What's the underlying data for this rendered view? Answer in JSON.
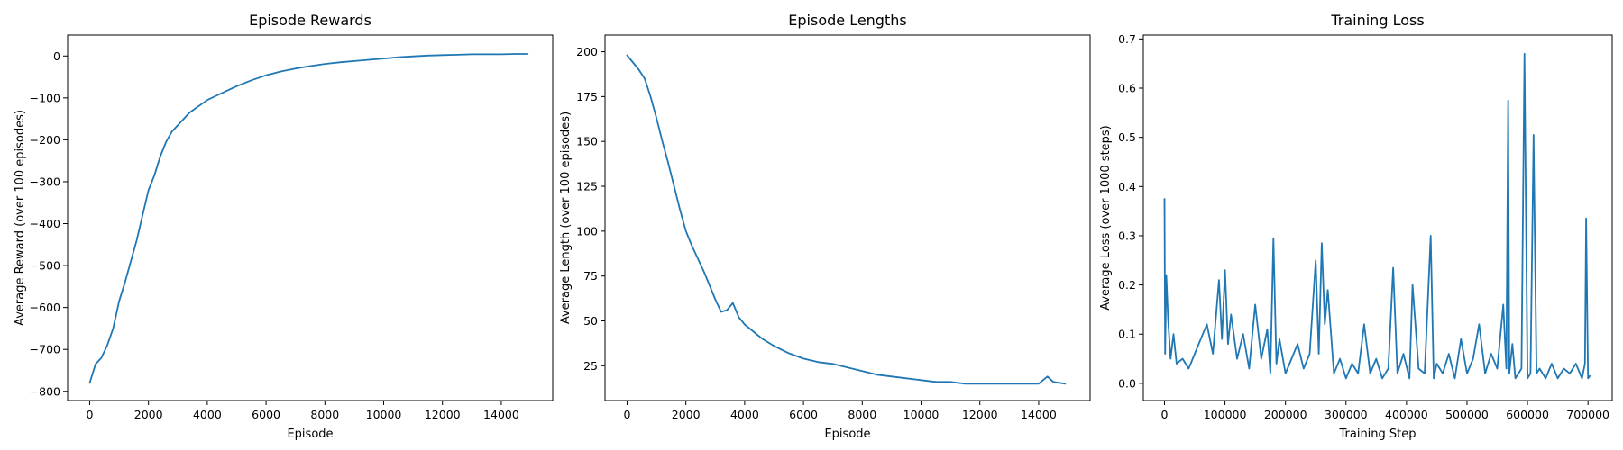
{
  "colors": {
    "series": "#1f77b4",
    "axes": "#000000",
    "background": "#ffffff"
  },
  "chart_data": [
    {
      "type": "line",
      "title": "Episode Rewards",
      "xlabel": "Episode",
      "ylabel": "Average Reward (over 100 episodes)",
      "xlim": [
        -750,
        15750
      ],
      "ylim": [
        -822,
        50
      ],
      "xticks": [
        0,
        2000,
        4000,
        6000,
        8000,
        10000,
        12000,
        14000
      ],
      "yticks": [
        -800,
        -700,
        -600,
        -500,
        -400,
        -300,
        -200,
        -100,
        0
      ],
      "grid": false,
      "series": [
        {
          "x": [
            0,
            200,
            400,
            600,
            800,
            1000,
            1200,
            1400,
            1600,
            1800,
            2000,
            2200,
            2400,
            2600,
            2800,
            3000,
            3200,
            3400,
            3600,
            3800,
            4000,
            4300,
            4600,
            5000,
            5500,
            6000,
            6500,
            7000,
            7500,
            8000,
            8500,
            9000,
            9500,
            10000,
            10500,
            11000,
            11500,
            12000,
            12500,
            13000,
            13500,
            14000,
            14500,
            14900
          ],
          "y": [
            -780,
            -735,
            -720,
            -690,
            -650,
            -585,
            -540,
            -490,
            -440,
            -380,
            -320,
            -285,
            -240,
            -205,
            -180,
            -165,
            -150,
            -135,
            -125,
            -115,
            -105,
            -95,
            -85,
            -72,
            -58,
            -46,
            -37,
            -30,
            -24,
            -19,
            -15,
            -12,
            -9,
            -6,
            -3,
            -1,
            1,
            2,
            3,
            4,
            4,
            4,
            5,
            5
          ]
        }
      ]
    },
    {
      "type": "line",
      "title": "Episode Lengths",
      "xlabel": "Episode",
      "ylabel": "Average Length (over 100 episodes)",
      "xlim": [
        -750,
        15750
      ],
      "ylim": [
        5.6,
        209.3
      ],
      "xticks": [
        0,
        2000,
        4000,
        6000,
        8000,
        10000,
        12000,
        14000
      ],
      "yticks": [
        25,
        50,
        75,
        100,
        125,
        150,
        175,
        200
      ],
      "grid": false,
      "series": [
        {
          "x": [
            0,
            200,
            400,
            600,
            800,
            1000,
            1200,
            1400,
            1600,
            1800,
            2000,
            2200,
            2400,
            2600,
            2800,
            3000,
            3200,
            3400,
            3600,
            3800,
            4000,
            4300,
            4600,
            5000,
            5500,
            6000,
            6500,
            7000,
            7500,
            8000,
            8500,
            9000,
            9500,
            10000,
            10500,
            11000,
            11500,
            12000,
            12500,
            13000,
            13500,
            14000,
            14300,
            14500,
            14900
          ],
          "y": [
            198,
            194,
            190,
            185,
            175,
            163,
            150,
            138,
            125,
            112,
            100,
            92,
            85,
            78,
            70,
            62,
            55,
            56,
            60,
            52,
            48,
            44,
            40,
            36,
            32,
            29,
            27,
            26,
            24,
            22,
            20,
            19,
            18,
            17,
            16,
            16,
            15,
            15,
            15,
            15,
            15,
            15,
            19,
            16,
            15
          ]
        }
      ]
    },
    {
      "type": "line",
      "title": "Training Loss",
      "xlabel": "Training Step",
      "ylabel": "Average Loss (over 1000 steps)",
      "xlim": [
        -35000,
        740000
      ],
      "ylim": [
        -0.035,
        0.708
      ],
      "xticks": [
        0,
        100000,
        200000,
        300000,
        400000,
        500000,
        600000,
        700000
      ],
      "yticks": [
        0.0,
        0.1,
        0.2,
        0.3,
        0.4,
        0.5,
        0.6,
        0.7
      ],
      "grid": false,
      "series": [
        {
          "x": [
            0,
            1000,
            3000,
            6000,
            10000,
            15000,
            20000,
            30000,
            40000,
            50000,
            60000,
            70000,
            80000,
            90000,
            95000,
            100000,
            105000,
            110000,
            120000,
            130000,
            140000,
            150000,
            160000,
            170000,
            175000,
            180000,
            185000,
            190000,
            200000,
            210000,
            220000,
            230000,
            240000,
            250000,
            255000,
            260000,
            265000,
            270000,
            280000,
            290000,
            300000,
            310000,
            320000,
            330000,
            340000,
            350000,
            360000,
            370000,
            378000,
            385000,
            395000,
            405000,
            410000,
            420000,
            430000,
            440000,
            445000,
            450000,
            460000,
            470000,
            480000,
            490000,
            500000,
            510000,
            520000,
            530000,
            540000,
            550000,
            560000,
            565000,
            568000,
            570000,
            575000,
            580000,
            590000,
            595000,
            600000,
            605000,
            610000,
            615000,
            620000,
            630000,
            640000,
            650000,
            660000,
            670000,
            680000,
            690000,
            695000,
            697000,
            700000,
            703000
          ],
          "y": [
            0.375,
            0.06,
            0.22,
            0.13,
            0.05,
            0.1,
            0.04,
            0.05,
            0.03,
            0.06,
            0.09,
            0.12,
            0.06,
            0.21,
            0.09,
            0.23,
            0.08,
            0.14,
            0.05,
            0.1,
            0.03,
            0.16,
            0.05,
            0.11,
            0.02,
            0.295,
            0.04,
            0.09,
            0.02,
            0.05,
            0.08,
            0.03,
            0.06,
            0.25,
            0.06,
            0.285,
            0.12,
            0.19,
            0.02,
            0.05,
            0.01,
            0.04,
            0.02,
            0.12,
            0.02,
            0.05,
            0.01,
            0.03,
            0.235,
            0.02,
            0.06,
            0.01,
            0.2,
            0.03,
            0.02,
            0.3,
            0.01,
            0.04,
            0.02,
            0.06,
            0.01,
            0.09,
            0.02,
            0.05,
            0.12,
            0.02,
            0.06,
            0.03,
            0.16,
            0.03,
            0.575,
            0.02,
            0.08,
            0.01,
            0.03,
            0.67,
            0.01,
            0.02,
            0.505,
            0.02,
            0.03,
            0.01,
            0.04,
            0.01,
            0.03,
            0.02,
            0.04,
            0.01,
            0.04,
            0.335,
            0.01,
            0.015
          ]
        }
      ]
    }
  ]
}
